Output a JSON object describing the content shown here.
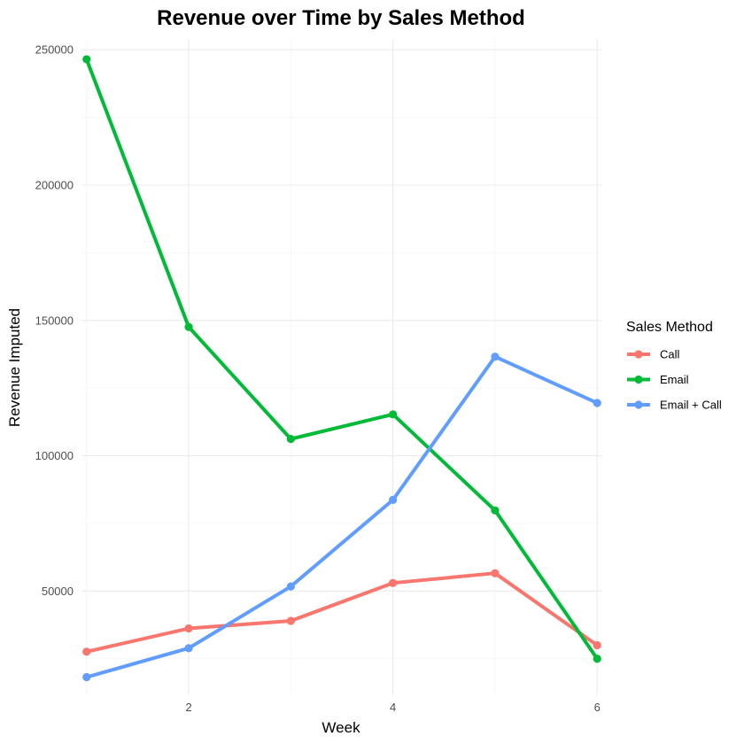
{
  "chart_data": {
    "type": "line",
    "title": "Revenue over Time by Sales Method",
    "xlabel": "Week",
    "ylabel": "Revenue Imputed",
    "x": [
      1,
      2,
      3,
      4,
      5,
      6
    ],
    "xlim": [
      0.95,
      6.05
    ],
    "ylim": [
      11500,
      254000
    ],
    "x_ticks": [
      2,
      4,
      6
    ],
    "x_tick_labels": [
      "2",
      "4",
      "6"
    ],
    "y_ticks": [
      50000,
      100000,
      150000,
      200000,
      250000
    ],
    "y_tick_labels": [
      "50000",
      "100000",
      "150000",
      "200000",
      "250000"
    ],
    "grid": true,
    "legend": {
      "title": "Sales Method",
      "position": "right"
    },
    "series": [
      {
        "name": "Call",
        "color": "#F8766D",
        "values": [
          27600,
          36200,
          39000,
          53000,
          56600,
          30000
        ]
      },
      {
        "name": "Email",
        "color": "#00BA38",
        "values": [
          246500,
          147600,
          106200,
          115300,
          79800,
          25000
        ]
      },
      {
        "name": "Email + Call",
        "color": "#619CFF",
        "values": [
          18200,
          28900,
          51700,
          83700,
          136600,
          119500
        ]
      }
    ]
  }
}
